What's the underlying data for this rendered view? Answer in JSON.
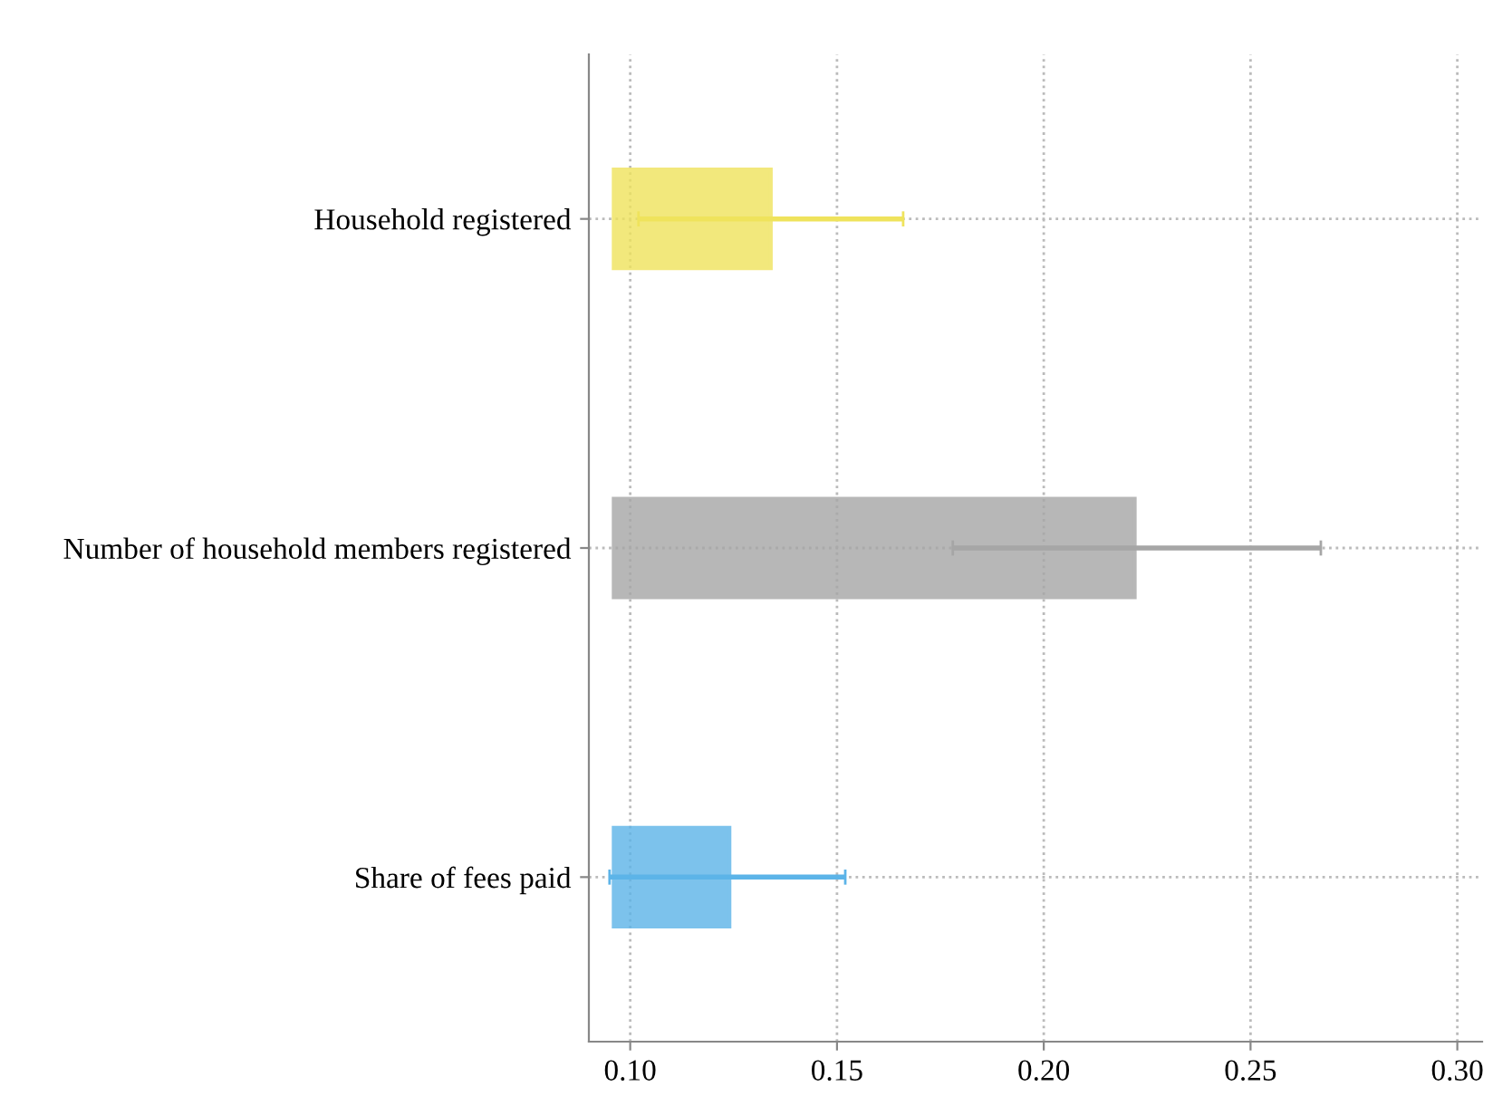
{
  "chart_data": {
    "type": "bar",
    "orientation": "horizontal",
    "categories": [
      "Household registered",
      "Number of household members registered",
      "Share of fees paid"
    ],
    "base": [
      0.096,
      0.096,
      0.096
    ],
    "values": [
      0.038,
      0.126,
      0.028
    ],
    "errors": [
      [
        0.102,
        0.166
      ],
      [
        0.178,
        0.267
      ],
      [
        0.095,
        0.152
      ]
    ],
    "colors": [
      "#efe35c",
      "#a6a6a6",
      "#5cb4e8"
    ],
    "xlim": [
      0.09,
      0.306
    ],
    "xticks": [
      {
        "value": 0.1,
        "label": "0.10"
      },
      {
        "value": 0.15,
        "label": "0.15"
      },
      {
        "value": 0.2,
        "label": "0.20"
      },
      {
        "value": 0.25,
        "label": "0.25"
      },
      {
        "value": 0.3,
        "label": "0.30"
      }
    ],
    "grid": true
  }
}
